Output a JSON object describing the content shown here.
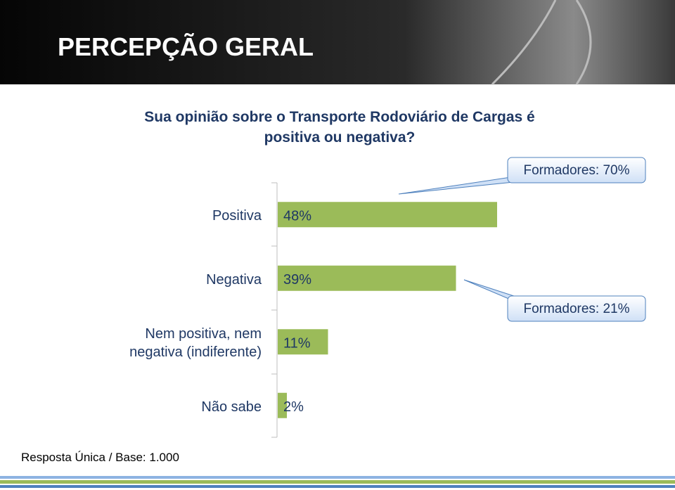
{
  "chart_data": {
    "type": "bar",
    "orientation": "horizontal",
    "title": "PERCEPÇÃO GERAL",
    "subtitle": "Sua opinião sobre o Transporte Rodoviário de Cargas é positiva ou negativa?",
    "categories": [
      "Positiva",
      "Negativa",
      "Nem positiva, nem negativa (indiferente)",
      "Não sabe"
    ],
    "values": [
      48,
      39,
      11,
      2
    ],
    "value_labels": [
      "48%",
      "39%",
      "11%",
      "2%"
    ],
    "color": "#9bbb59",
    "annotations": [
      "Formadores: 70%",
      "Formadores: 21%"
    ],
    "footnote": "Resposta Única / Base: 1.000"
  }
}
